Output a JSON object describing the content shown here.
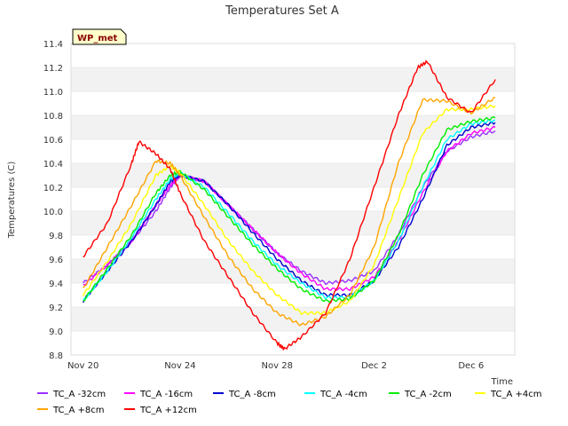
{
  "chart_data": {
    "type": "line",
    "title": "Temperatures Set A",
    "xlabel": "Time",
    "ylabel": "Temperatures (C)",
    "badge": "WP_met",
    "x_tick_labels": [
      "Nov 20",
      "Nov 24",
      "Nov 28",
      "Dec 2",
      "Dec 6"
    ],
    "x_tick_days": [
      0,
      4,
      8,
      12,
      16
    ],
    "xlim": [
      -0.5,
      17.8
    ],
    "ylim": [
      8.8,
      11.4
    ],
    "y_ticks": [
      8.8,
      9.0,
      9.2,
      9.4,
      9.6,
      9.8,
      10.0,
      10.2,
      10.4,
      10.6,
      10.8,
      11.0,
      11.2,
      11.4
    ],
    "y_tick_labels": [
      "8.8",
      "9.0",
      "9.2",
      "9.4",
      "9.6",
      "9.8",
      "10.0",
      "10.2",
      "10.4",
      "10.6",
      "10.8",
      "11.0",
      "11.2",
      "11.4"
    ],
    "grid": "horizontal-bands",
    "legend_position": "bottom",
    "series": [
      {
        "name": "TC_A -32cm",
        "color": "#9b30ff",
        "x": [
          0,
          1,
          2,
          3,
          3.6,
          4,
          5,
          6,
          7,
          8,
          9,
          10,
          11,
          12,
          13,
          14,
          15,
          16,
          17
        ],
        "y": [
          9.4,
          9.55,
          9.75,
          10.0,
          10.2,
          10.3,
          10.25,
          10.05,
          9.85,
          9.65,
          9.5,
          9.4,
          9.42,
          9.5,
          9.8,
          10.2,
          10.5,
          10.62,
          10.67
        ]
      },
      {
        "name": "TC_A -16cm",
        "color": "#ff00ff",
        "x": [
          0,
          1,
          2,
          3,
          3.6,
          4,
          5,
          6,
          7,
          8,
          9,
          10,
          11,
          12,
          13,
          14,
          15,
          16,
          17
        ],
        "y": [
          9.38,
          9.55,
          9.75,
          10.05,
          10.22,
          10.3,
          10.25,
          10.05,
          9.85,
          9.65,
          9.48,
          9.35,
          9.35,
          9.45,
          9.75,
          10.15,
          10.5,
          10.65,
          10.7
        ]
      },
      {
        "name": "TC_A -8cm",
        "color": "#0000cd",
        "x": [
          0,
          1,
          2,
          3,
          3.6,
          4,
          5,
          6,
          7,
          8,
          9,
          10,
          11,
          12,
          13,
          14,
          15,
          16,
          17
        ],
        "y": [
          9.25,
          9.5,
          9.75,
          10.05,
          10.25,
          10.3,
          10.25,
          10.05,
          9.82,
          9.6,
          9.42,
          9.3,
          9.3,
          9.42,
          9.7,
          10.1,
          10.55,
          10.7,
          10.74
        ]
      },
      {
        "name": "TC_A -4cm",
        "color": "#00ffff",
        "x": [
          0,
          1,
          2,
          3,
          3.6,
          4,
          5,
          6,
          7,
          8,
          9,
          10,
          11,
          12,
          13,
          14,
          15,
          16,
          17
        ],
        "y": [
          9.25,
          9.5,
          9.78,
          10.1,
          10.27,
          10.32,
          10.2,
          9.98,
          9.75,
          9.55,
          9.4,
          9.28,
          9.28,
          9.42,
          9.75,
          10.2,
          10.6,
          10.73,
          10.76
        ]
      },
      {
        "name": "TC_A -2cm",
        "color": "#00ee00",
        "x": [
          0,
          1,
          2,
          3,
          3.6,
          4,
          5,
          6,
          7,
          8,
          9,
          10,
          11,
          12,
          13,
          14,
          15,
          16,
          17
        ],
        "y": [
          9.25,
          9.52,
          9.8,
          10.15,
          10.3,
          10.33,
          10.18,
          9.95,
          9.72,
          9.52,
          9.35,
          9.25,
          9.27,
          9.42,
          9.8,
          10.3,
          10.68,
          10.75,
          10.78
        ]
      },
      {
        "name": "TC_A +4cm",
        "color": "#ffff00",
        "x": [
          0,
          1,
          2,
          3,
          3.6,
          4,
          5,
          6,
          7,
          8,
          9,
          10,
          11,
          12,
          13,
          14,
          15,
          16,
          17
        ],
        "y": [
          9.3,
          9.58,
          9.9,
          10.3,
          10.38,
          10.32,
          10.05,
          9.75,
          9.5,
          9.3,
          9.15,
          9.15,
          9.25,
          9.55,
          10.1,
          10.65,
          10.85,
          10.85,
          10.88
        ]
      },
      {
        "name": "TC_A +8cm",
        "color": "#ffa500",
        "x": [
          0,
          1,
          2,
          3,
          3.6,
          4,
          5,
          6,
          7,
          8,
          9,
          10,
          11,
          12,
          13,
          14,
          15,
          16,
          17
        ],
        "y": [
          9.35,
          9.7,
          10.05,
          10.42,
          10.4,
          10.3,
          9.95,
          9.62,
          9.35,
          9.15,
          9.05,
          9.12,
          9.3,
          9.7,
          10.4,
          10.93,
          10.92,
          10.82,
          10.95
        ]
      },
      {
        "name": "TC_A +12cm",
        "color": "#ff0000",
        "x": [
          0,
          1,
          2,
          2.3,
          3,
          3.6,
          4,
          5,
          6,
          7,
          8,
          8.3,
          9,
          10,
          11,
          12,
          13,
          13.8,
          14.2,
          15,
          16,
          17
        ],
        "y": [
          9.62,
          9.9,
          10.4,
          10.58,
          10.48,
          10.35,
          10.15,
          9.75,
          9.45,
          9.15,
          8.9,
          8.85,
          8.95,
          9.15,
          9.6,
          10.2,
          10.8,
          11.2,
          11.25,
          10.95,
          10.82,
          11.1
        ]
      }
    ]
  }
}
